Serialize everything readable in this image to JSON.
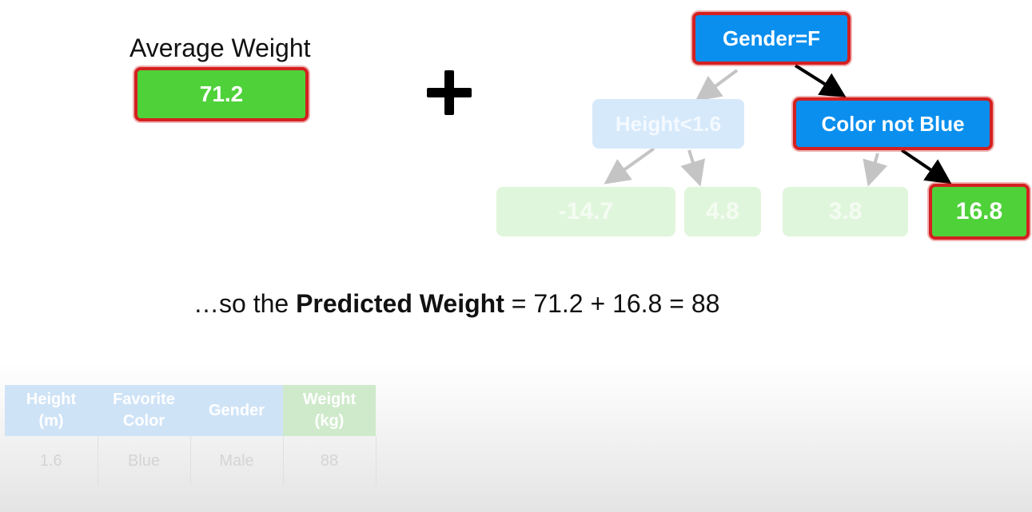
{
  "average": {
    "label": "Average Weight",
    "value": "71.2"
  },
  "tree": {
    "root": "Gender=F",
    "left_node": "Height<1.6",
    "right_node": "Color not Blue",
    "leaves": [
      "-14.7",
      "4.8",
      "3.8",
      "16.8"
    ]
  },
  "formula": {
    "prefix": "…so the ",
    "bold": "Predicted Weight",
    "rest": " = 71.2 + 16.8 = 88"
  },
  "table": {
    "headers": [
      {
        "line1": "Height",
        "line2": "(m)"
      },
      {
        "line1": "Favorite",
        "line2": "Color"
      },
      {
        "line1": "Gender",
        "line2": ""
      },
      {
        "line1": "Weight",
        "line2": "(kg)"
      }
    ],
    "rows": [
      [
        "1.6",
        "Blue",
        "Male",
        "88"
      ]
    ]
  },
  "colors": {
    "highlight": "#d42020",
    "node_blue": "#0a8fee",
    "leaf_green": "#4fd13a"
  }
}
